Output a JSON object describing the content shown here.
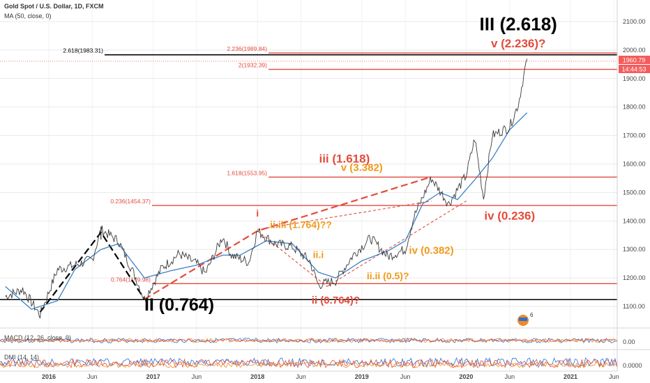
{
  "header": {
    "symbol": "Gold Spot / U.S. Dollar, 1D, FXCM",
    "ma": "MA (50, close, 0)"
  },
  "colors": {
    "price": "#3a3a3a",
    "ma": "#3b82c4",
    "red": "#e34b3c",
    "orange": "#f09a1a",
    "black": "#000000",
    "grid": "#e9e9e9"
  },
  "chart_data": {
    "type": "line",
    "x_axis": {
      "ticks": [
        "2016",
        "Jun",
        "2017",
        "Jun",
        "2018",
        "Jun",
        "2019",
        "Jun",
        "2020",
        "Jun",
        "2021",
        "Jun"
      ],
      "range": [
        "2015-08",
        "2021-07"
      ]
    },
    "y_axis": {
      "ticks": [
        "2100.00",
        "2000.00",
        "1900.00",
        "1800.00",
        "1700.00",
        "1600.00",
        "1500.00",
        "1400.00",
        "1300.00",
        "1200.00",
        "1100.00"
      ],
      "range": [
        1050,
        2130
      ]
    },
    "last_price": "1960.79",
    "countdown": "14:44:53",
    "price_series": {
      "x": [
        "2015-08",
        "2015-10",
        "2015-12",
        "2016-02",
        "2016-04",
        "2016-06",
        "2016-07",
        "2016-09",
        "2016-11",
        "2016-12",
        "2017-02",
        "2017-04",
        "2017-06",
        "2017-07",
        "2017-09",
        "2017-10",
        "2017-12",
        "2018-01",
        "2018-03",
        "2018-05",
        "2018-07",
        "2018-08",
        "2018-10",
        "2018-12",
        "2019-02",
        "2019-04",
        "2019-06",
        "2019-07",
        "2019-09",
        "2019-11",
        "2020-01",
        "2020-02",
        "2020-03",
        "2020-04",
        "2020-06",
        "2020-07",
        "2020-08"
      ],
      "y": [
        1135,
        1160,
        1070,
        1230,
        1245,
        1265,
        1370,
        1330,
        1200,
        1125,
        1235,
        1285,
        1250,
        1215,
        1345,
        1280,
        1255,
        1365,
        1320,
        1310,
        1260,
        1175,
        1190,
        1280,
        1340,
        1275,
        1300,
        1415,
        1550,
        1460,
        1560,
        1690,
        1480,
        1700,
        1730,
        1810,
        1970
      ]
    },
    "ma_series": {
      "x": [
        "2015-08",
        "2015-11",
        "2016-02",
        "2016-04",
        "2016-07",
        "2016-09",
        "2016-12",
        "2017-03",
        "2017-06",
        "2017-09",
        "2017-11",
        "2018-02",
        "2018-05",
        "2018-08",
        "2018-10",
        "2019-01",
        "2019-04",
        "2019-06",
        "2019-08",
        "2019-10",
        "2019-12",
        "2020-02",
        "2020-04",
        "2020-06",
        "2020-08"
      ],
      "y": [
        1170,
        1090,
        1120,
        1230,
        1300,
        1320,
        1200,
        1225,
        1245,
        1280,
        1280,
        1330,
        1320,
        1220,
        1200,
        1260,
        1295,
        1330,
        1460,
        1500,
        1475,
        1545,
        1620,
        1720,
        1780
      ]
    },
    "levels": [
      {
        "label": "2.618(1983.31)",
        "value": 1983.31,
        "color": "black"
      },
      {
        "label": "2.236(1989.84)",
        "value": 1989.84,
        "color": "red"
      },
      {
        "label": "2(1932.39)",
        "value": 1932.39,
        "color": "red"
      },
      {
        "label": "1.618(1553.95)",
        "value": 1553.95,
        "color": "red"
      },
      {
        "label": "0.236(1454.37)",
        "value": 1454.37,
        "color": "red"
      },
      {
        "label": "0.764(1179.98)",
        "value": 1179.98,
        "color": "red"
      },
      {
        "label": "0.764(1123.83)",
        "value": 1123.83,
        "color": "black"
      }
    ],
    "wave_labels": [
      {
        "text": "III (2.618)",
        "date": "2020-07",
        "value": 2070,
        "color": "black"
      },
      {
        "text": "v (2.236)?",
        "date": "2020-07",
        "value": 2010,
        "color": "red"
      },
      {
        "text": "iii (1.618)",
        "date": "2018-11",
        "value": 1605,
        "color": "red"
      },
      {
        "text": "v (3.382)",
        "date": "2019-01",
        "value": 1575,
        "color": "orange"
      },
      {
        "text": "iv (0.236)",
        "date": "2020-06",
        "value": 1405,
        "color": "red"
      },
      {
        "text": "i",
        "date": "2018-01",
        "value": 1415,
        "color": "red"
      },
      {
        "text": "ii.iii (1.764)??",
        "date": "2018-06",
        "value": 1375,
        "color": "orange"
      },
      {
        "text": "ii.i",
        "date": "2018-08",
        "value": 1270,
        "color": "orange"
      },
      {
        "text": "iv (0.382)",
        "date": "2019-09",
        "value": 1285,
        "color": "orange"
      },
      {
        "text": "ii.ii (0.5)?",
        "date": "2019-04",
        "value": 1195,
        "color": "orange"
      },
      {
        "text": "ii (0.764)?",
        "date": "2018-10",
        "value": 1110,
        "color": "red"
      },
      {
        "text": "II (0.764)",
        "date": "2017-04",
        "value": 1085,
        "color": "black"
      }
    ]
  },
  "macd": {
    "label": "MACD (12, 26, close, 9)",
    "tick": "0.00"
  },
  "dmi": {
    "label": "DMI (14, 14)",
    "tick": "0.0000"
  },
  "watermark": "6"
}
